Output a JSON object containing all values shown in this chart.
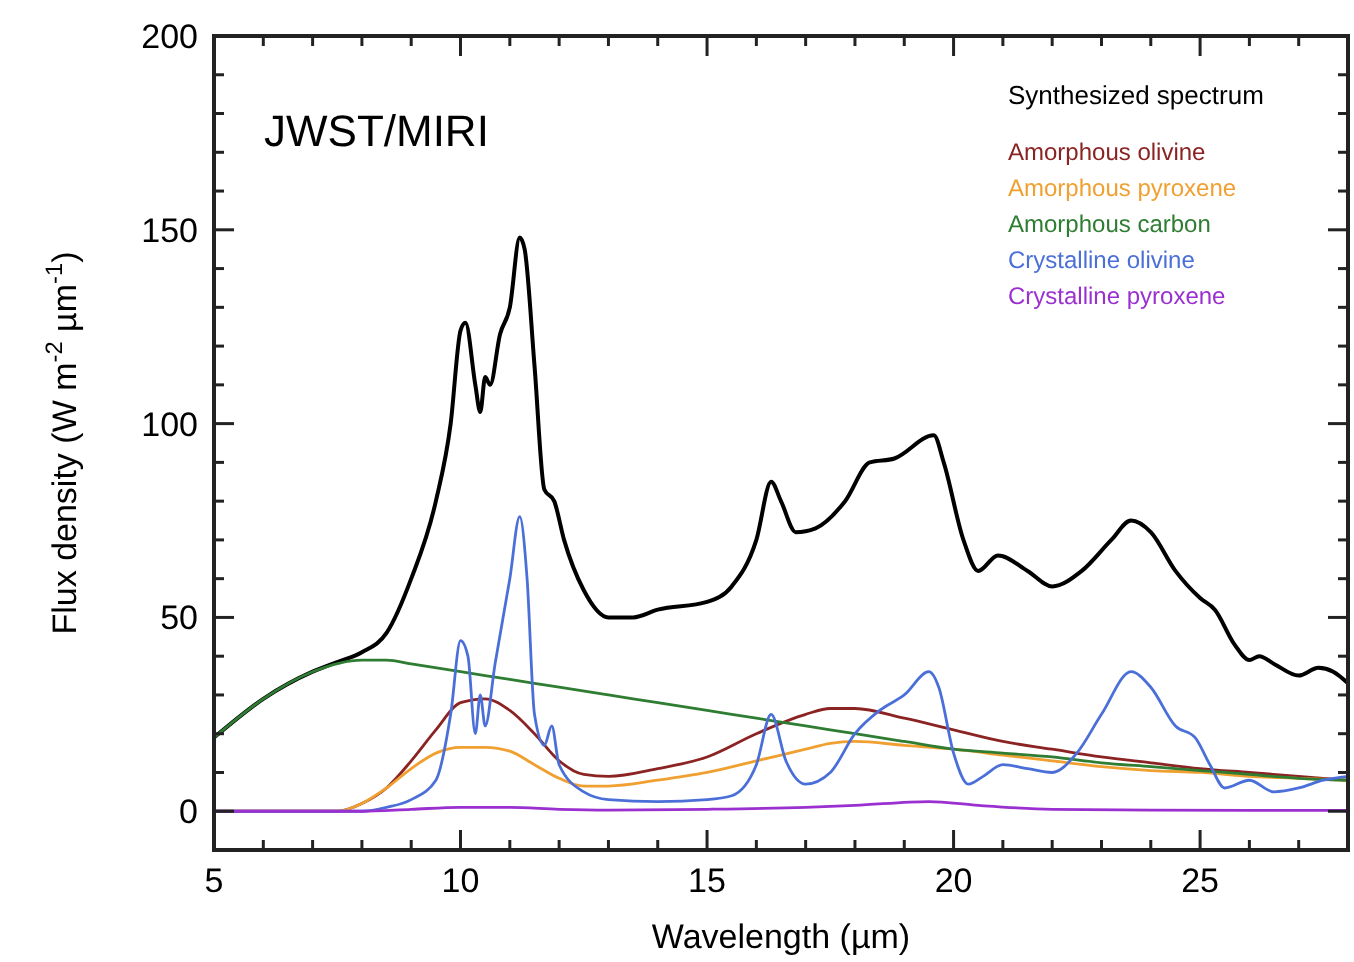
{
  "chart_data": {
    "type": "line",
    "xlabel": "Wavelength (µm)",
    "ylabel": "Flux density (W m$^{-2}$ µm$^{-1}$)",
    "annotations": [
      "JWST/MIRI"
    ],
    "xlim": [
      5,
      28
    ],
    "ylim": [
      -10,
      200
    ],
    "xticks": [
      5,
      {
        "value": 6,
        "label": null
      },
      {
        "value": 7,
        "label": null
      },
      {
        "value": 8,
        "label": null
      },
      {
        "value": 9,
        "label": null
      },
      10,
      {
        "value": 11,
        "label": null
      },
      {
        "value": 12,
        "label": null
      },
      {
        "value": 13,
        "label": null
      },
      {
        "value": 14,
        "label": null
      },
      15,
      {
        "value": 16,
        "label": null
      },
      {
        "value": 17,
        "label": null
      },
      {
        "value": 18,
        "label": null
      },
      {
        "value": 19,
        "label": null
      },
      20,
      {
        "value": 21,
        "label": null
      },
      {
        "value": 22,
        "label": null
      },
      {
        "value": 23,
        "label": null
      },
      {
        "value": 24,
        "label": null
      },
      25,
      {
        "value": 26,
        "label": null
      },
      {
        "value": 27,
        "label": null
      }
    ],
    "yticks": [
      {
        "value": -10,
        "label": null
      },
      0,
      {
        "value": 10,
        "label": null
      },
      {
        "value": 20,
        "label": null
      },
      {
        "value": 30,
        "label": null
      },
      {
        "value": 40,
        "label": null
      },
      50,
      {
        "value": 60,
        "label": null
      },
      {
        "value": 70,
        "label": null
      },
      {
        "value": 80,
        "label": null
      },
      {
        "value": 90,
        "label": null
      },
      100,
      {
        "value": 110,
        "label": null
      },
      {
        "value": 120,
        "label": null
      },
      {
        "value": 130,
        "label": null
      },
      {
        "value": 140,
        "label": null
      },
      150,
      {
        "value": 160,
        "label": null
      },
      {
        "value": 170,
        "label": null
      },
      {
        "value": 180,
        "label": null
      },
      {
        "value": 190,
        "label": null
      },
      200
    ],
    "grid": false,
    "legend": "top right",
    "marker": "none",
    "line_style": "solid",
    "series": [
      {
        "name": "Synthesized spectrum",
        "color": "#000000",
        "x": [
          5,
          6,
          7,
          7.5,
          8,
          8.5,
          9,
          9.5,
          9.8,
          10,
          10.1,
          10.3,
          10.4,
          10.5,
          10.6,
          10.8,
          11,
          11.2,
          11.3,
          11.5,
          11.7,
          11.9,
          12.1,
          12.5,
          13,
          13.5,
          14,
          15,
          15.5,
          16,
          16.3,
          16.5,
          16.8,
          17.2,
          17.8,
          18.3,
          18.8,
          19.6,
          19.8,
          20.2,
          20.5,
          20.9,
          21.5,
          22,
          22.6,
          23.2,
          23.6,
          24,
          24.5,
          25,
          25.3,
          25.7,
          26,
          26.2,
          26.5,
          27,
          27.4,
          27.7,
          28
        ],
        "values": [
          19,
          29,
          36,
          38.5,
          41,
          46,
          60,
          80,
          100,
          124,
          126,
          110,
          103,
          112,
          110,
          123,
          130,
          148,
          145,
          115,
          83,
          80,
          70,
          57,
          50,
          50,
          52,
          54,
          58,
          70,
          85,
          80,
          72,
          73,
          80,
          90,
          91,
          97,
          90,
          70,
          62,
          66,
          62,
          58,
          62,
          70,
          75,
          72,
          62,
          55,
          52,
          43,
          39,
          40,
          38,
          35,
          37,
          36,
          33
        ]
      },
      {
        "name": "Amorphous olivine",
        "color": "#8b2323",
        "x": [
          5,
          7.5,
          8,
          8.5,
          9,
          9.5,
          10,
          10.5,
          11,
          11.5,
          12,
          12.5,
          13,
          14,
          15,
          16,
          17,
          17.5,
          18,
          19,
          20,
          21,
          22,
          23,
          24,
          25,
          26,
          27,
          28
        ],
        "values": [
          0,
          0,
          2,
          6,
          13,
          21,
          28,
          29,
          26,
          20,
          13,
          9.5,
          9,
          11,
          14,
          20,
          25,
          26.5,
          26.5,
          24,
          21,
          18,
          16,
          14,
          12.5,
          11,
          10,
          9,
          8
        ]
      },
      {
        "name": "Amorphous pyroxene",
        "color": "#f0a030",
        "x": [
          5,
          7.5,
          8,
          8.5,
          9,
          9.5,
          10,
          10.5,
          11,
          11.5,
          12,
          12.5,
          13,
          14,
          15,
          16,
          17,
          17.5,
          18,
          19,
          20,
          21,
          22,
          23,
          24,
          25,
          26,
          27,
          28
        ],
        "values": [
          0,
          0,
          2,
          6,
          11,
          15,
          16.5,
          16.5,
          15.5,
          12,
          8.5,
          6.5,
          6.5,
          8,
          10,
          13,
          16,
          17.5,
          18,
          17,
          16,
          14.5,
          13,
          11.5,
          10.5,
          10,
          9,
          8.5,
          8
        ]
      },
      {
        "name": "Amorphous carbon",
        "color": "#2e7d32",
        "x": [
          5,
          6,
          7,
          8,
          8.5,
          9,
          10,
          11,
          12,
          13,
          14,
          15,
          16,
          17,
          18,
          19,
          20,
          21,
          22,
          23,
          24,
          25,
          26,
          27,
          28
        ],
        "values": [
          19,
          29,
          36,
          39,
          39,
          38,
          36,
          34,
          32,
          30,
          28,
          26,
          24,
          22,
          20,
          18,
          16,
          15,
          14,
          12.5,
          11.5,
          10.5,
          9.5,
          8.5,
          8
        ]
      },
      {
        "name": "Crystalline olivine",
        "color": "#4a6fd8",
        "x": [
          5,
          8,
          8.5,
          9,
          9.5,
          9.8,
          10,
          10.15,
          10.3,
          10.4,
          10.5,
          10.7,
          11,
          11.2,
          11.35,
          11.5,
          11.7,
          11.85,
          12,
          12.5,
          13,
          14,
          15,
          15.5,
          16,
          16.3,
          16.6,
          17,
          17.5,
          18,
          18.5,
          19,
          19.5,
          19.7,
          20,
          20.3,
          20.6,
          21,
          21.5,
          22,
          22.5,
          23,
          23.6,
          24,
          24.5,
          24.9,
          25.2,
          25.5,
          26,
          26.5,
          27,
          27.5,
          28
        ],
        "values": [
          0,
          0,
          1,
          3,
          8,
          25,
          44,
          40,
          20,
          30,
          22,
          38,
          60,
          76,
          60,
          25,
          17,
          22,
          12,
          5,
          3,
          2.5,
          3,
          4,
          12,
          25,
          13,
          7,
          10,
          20,
          26,
          30,
          36,
          32,
          15,
          7,
          9,
          12,
          11,
          10,
          15,
          25,
          36,
          32,
          22,
          19,
          12,
          6,
          8,
          5,
          6,
          8,
          9
        ]
      },
      {
        "name": "Crystalline pyroxene",
        "color": "#9b30d0",
        "x": [
          5,
          8,
          9,
          10,
          11,
          12,
          13,
          15,
          17,
          18,
          19.5,
          20.5,
          22,
          24,
          26,
          28
        ],
        "values": [
          0,
          0,
          0.5,
          1,
          1,
          0.5,
          0.3,
          0.5,
          1,
          1.5,
          2.5,
          1.5,
          0.5,
          0.3,
          0.2,
          0.2
        ]
      }
    ]
  }
}
